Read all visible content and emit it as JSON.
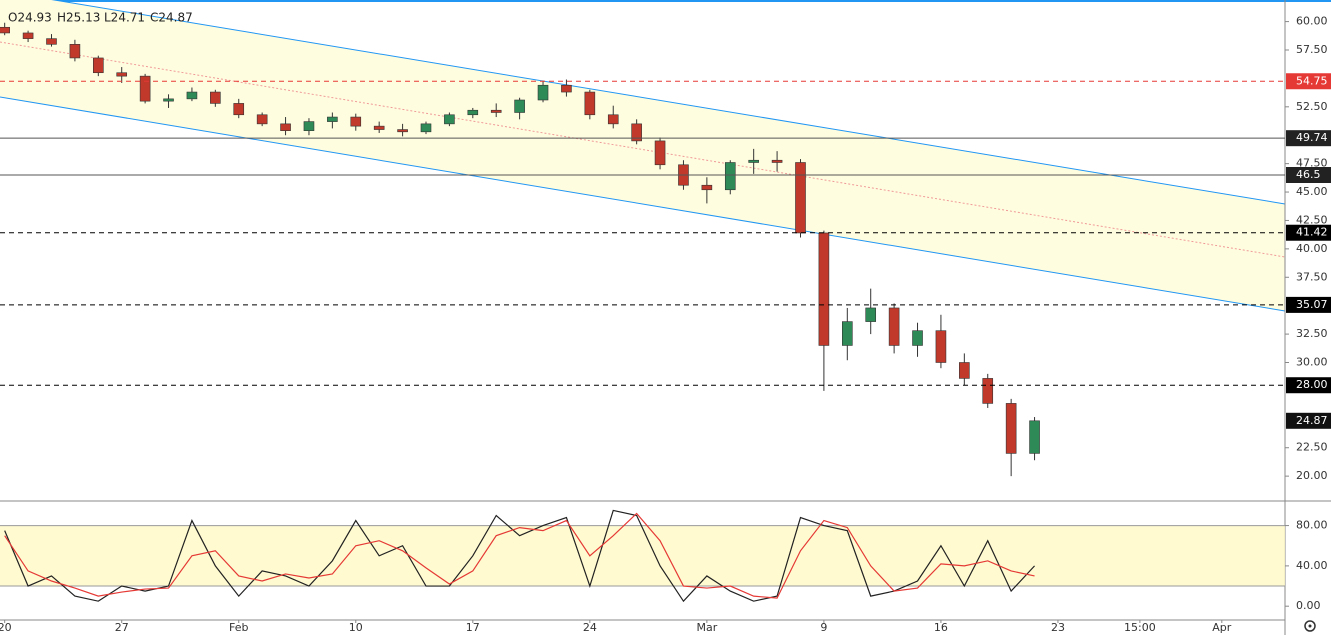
{
  "chart_data": [
    {
      "type": "candlestick",
      "ohlc_labels": [
        "O24.93",
        "H25.13",
        "L24.71",
        "C24.87"
      ],
      "up_color": "#2e8b57",
      "down_color": "#c0392b",
      "x": [
        0,
        1,
        2,
        3,
        4,
        5,
        6,
        7,
        8,
        9,
        10,
        11,
        12,
        13,
        14,
        15,
        16,
        17,
        18,
        19,
        20,
        21,
        22,
        23,
        24,
        25,
        26,
        27,
        28,
        29,
        30,
        31,
        32,
        33,
        34,
        35,
        36,
        37,
        38,
        39,
        40,
        41,
        42,
        43,
        44
      ],
      "ohlc": [
        [
          59.5,
          59.9,
          58.8,
          59.0
        ],
        [
          59.0,
          59.2,
          58.2,
          58.5
        ],
        [
          58.5,
          58.9,
          57.8,
          58.0
        ],
        [
          58.0,
          58.4,
          56.5,
          56.8
        ],
        [
          56.8,
          57.0,
          55.2,
          55.5
        ],
        [
          55.5,
          56.0,
          54.6,
          55.2
        ],
        [
          55.2,
          55.4,
          52.8,
          53.0
        ],
        [
          53.0,
          53.6,
          52.4,
          53.2
        ],
        [
          53.2,
          54.2,
          53.0,
          53.8
        ],
        [
          53.8,
          54.0,
          52.5,
          52.8
        ],
        [
          52.8,
          53.2,
          51.5,
          51.8
        ],
        [
          51.8,
          52.0,
          50.8,
          51.0
        ],
        [
          51.0,
          51.6,
          50.0,
          50.4
        ],
        [
          50.4,
          51.5,
          50.0,
          51.2
        ],
        [
          51.2,
          52.0,
          50.6,
          51.6
        ],
        [
          51.6,
          51.9,
          50.4,
          50.8
        ],
        [
          50.8,
          51.2,
          50.2,
          50.5
        ],
        [
          50.5,
          51.0,
          49.9,
          50.3
        ],
        [
          50.3,
          51.2,
          50.1,
          51.0
        ],
        [
          51.0,
          52.0,
          50.8,
          51.8
        ],
        [
          51.8,
          52.4,
          51.5,
          52.2
        ],
        [
          52.2,
          52.8,
          51.6,
          52.0
        ],
        [
          52.0,
          53.3,
          51.4,
          53.1
        ],
        [
          53.1,
          54.8,
          52.9,
          54.4
        ],
        [
          54.4,
          54.9,
          53.4,
          53.8
        ],
        [
          53.8,
          54.0,
          51.4,
          51.8
        ],
        [
          51.8,
          52.6,
          50.6,
          51.0
        ],
        [
          51.0,
          51.4,
          49.2,
          49.5
        ],
        [
          49.5,
          49.8,
          47.0,
          47.4
        ],
        [
          47.4,
          47.8,
          45.2,
          45.6
        ],
        [
          45.6,
          46.3,
          44.0,
          45.2
        ],
        [
          45.2,
          47.8,
          44.8,
          47.6
        ],
        [
          47.6,
          48.8,
          46.6,
          47.8
        ],
        [
          47.8,
          48.6,
          46.8,
          47.6
        ],
        [
          47.6,
          47.9,
          41.0,
          41.4
        ],
        [
          41.4,
          41.6,
          27.5,
          31.5
        ],
        [
          31.5,
          34.8,
          30.2,
          33.6
        ],
        [
          33.6,
          36.5,
          32.5,
          34.8
        ],
        [
          34.8,
          35.2,
          30.8,
          31.5
        ],
        [
          31.5,
          33.5,
          30.5,
          32.8
        ],
        [
          32.8,
          34.2,
          29.5,
          30.0
        ],
        [
          30.0,
          30.8,
          28.0,
          28.6
        ],
        [
          28.6,
          29.0,
          26.0,
          26.4
        ],
        [
          26.4,
          26.8,
          20.0,
          22.0
        ],
        [
          22.0,
          25.2,
          21.4,
          24.87
        ]
      ],
      "xlim": [
        -0.2,
        54.7
      ],
      "ylim": [
        17.9,
        61.9
      ],
      "yticks": [
        {
          "value": 60,
          "label": "60.00"
        },
        {
          "value": 57.5,
          "label": "57.50"
        },
        {
          "value": 52.5,
          "label": "52.50"
        },
        {
          "value": 47.5,
          "label": "47.50"
        },
        {
          "value": 45,
          "label": "45.00"
        },
        {
          "value": 42.5,
          "label": "42.50"
        },
        {
          "value": 40,
          "label": "40.00"
        },
        {
          "value": 37.5,
          "label": "37.50"
        },
        {
          "value": 32.5,
          "label": "32.50"
        },
        {
          "value": 30,
          "label": "30.00"
        },
        {
          "value": 22.5,
          "label": "22.50"
        },
        {
          "value": 20,
          "label": "20.00"
        }
      ],
      "levels": [
        {
          "value": 54.75,
          "color": "#e53935",
          "dash": true
        },
        {
          "value": 49.74,
          "color": "#555555",
          "dash": false
        },
        {
          "value": 46.5,
          "color": "#555555",
          "dash": false
        },
        {
          "value": 41.42,
          "color": "#000000",
          "dash": true
        },
        {
          "value": 35.07,
          "color": "#000000",
          "dash": true
        },
        {
          "value": 28,
          "label": "28.00",
          "color": "#000000",
          "dash": true
        }
      ],
      "last_price": 24.87
    },
    {
      "type": "line",
      "xlim": [
        -0.2,
        54.7
      ],
      "ylim": [
        -13.7,
        103.4
      ],
      "yticks": [
        {
          "value": 80,
          "label": "80.00"
        },
        {
          "value": 40,
          "label": "40.00"
        },
        {
          "value": 0,
          "label": "0.00"
        }
      ],
      "bands": [
        20,
        80
      ],
      "series": [
        {
          "color": "#222222",
          "values": [
            75,
            20,
            30,
            10,
            5,
            20,
            15,
            20,
            85,
            40,
            10,
            35,
            30,
            20,
            45,
            85,
            50,
            60,
            20,
            20,
            50,
            90,
            70,
            80,
            88,
            20,
            95,
            90,
            40,
            5,
            30,
            15,
            5,
            10,
            88,
            80,
            75,
            10,
            15,
            25,
            60,
            20,
            65,
            15,
            40
          ]
        },
        {
          "color": "#e53935",
          "values": [
            70,
            35,
            25,
            18,
            10,
            14,
            17,
            18,
            50,
            55,
            30,
            25,
            32,
            28,
            32,
            60,
            65,
            55,
            38,
            22,
            35,
            70,
            78,
            75,
            85,
            50,
            70,
            92,
            65,
            20,
            18,
            20,
            10,
            8,
            55,
            85,
            78,
            40,
            15,
            18,
            42,
            40,
            45,
            35,
            30
          ]
        }
      ],
      "xticks": [
        {
          "value": 0,
          "label": "20"
        },
        {
          "value": 5,
          "label": "27"
        },
        {
          "value": 10,
          "label": "Feb"
        },
        {
          "value": 15,
          "label": "10"
        },
        {
          "value": 20,
          "label": "17"
        },
        {
          "value": 25,
          "label": "24"
        },
        {
          "value": 30,
          "label": "Mar"
        },
        {
          "value": 35,
          "label": "9"
        },
        {
          "value": 40,
          "label": "16"
        },
        {
          "value": 45,
          "label": "23"
        },
        {
          "value": 48.5,
          "label": "15:00"
        },
        {
          "value": 52,
          "label": "Apr"
        }
      ]
    }
  ]
}
